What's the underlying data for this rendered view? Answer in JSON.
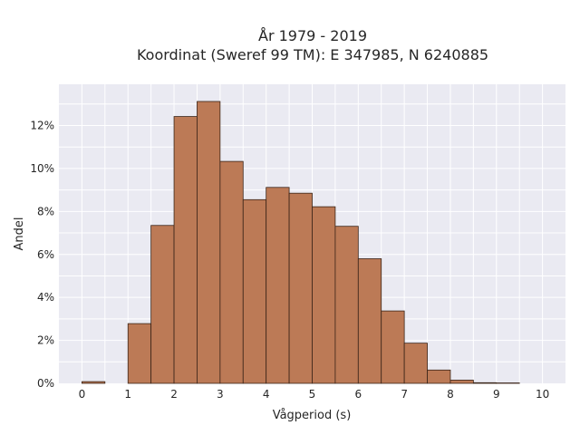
{
  "chart_data": {
    "type": "bar",
    "title_line1": "År 1979 - 2019",
    "title_line2": "Koordinat (Sweref 99 TM): E 347985, N 6240885",
    "xlabel": "Vågperiod (s)",
    "ylabel": "Andel",
    "bin_width": 0.5,
    "bins": [
      {
        "x0": 0.0,
        "value": 0.0008
      },
      {
        "x0": 0.5,
        "value": 0.0
      },
      {
        "x0": 1.0,
        "value": 0.0278
      },
      {
        "x0": 1.5,
        "value": 0.0735
      },
      {
        "x0": 2.0,
        "value": 0.1242
      },
      {
        "x0": 2.5,
        "value": 0.1312
      },
      {
        "x0": 3.0,
        "value": 0.1033
      },
      {
        "x0": 3.5,
        "value": 0.0855
      },
      {
        "x0": 4.0,
        "value": 0.0912
      },
      {
        "x0": 4.5,
        "value": 0.0885
      },
      {
        "x0": 5.0,
        "value": 0.0822
      },
      {
        "x0": 5.5,
        "value": 0.0731
      },
      {
        "x0": 6.0,
        "value": 0.058
      },
      {
        "x0": 6.5,
        "value": 0.0337
      },
      {
        "x0": 7.0,
        "value": 0.0187
      },
      {
        "x0": 7.5,
        "value": 0.0062
      },
      {
        "x0": 8.0,
        "value": 0.0015
      },
      {
        "x0": 8.5,
        "value": 0.0003
      },
      {
        "x0": 9.0,
        "value": 0.0002
      }
    ],
    "xticks": [
      "0",
      "1",
      "2",
      "3",
      "4",
      "5",
      "6",
      "7",
      "8",
      "9",
      "10"
    ],
    "yticks": [
      "0%",
      "2%",
      "4%",
      "6%",
      "8%",
      "10%",
      "12%"
    ],
    "xlim": [
      -0.5,
      10.5
    ],
    "ylim": [
      0,
      0.1392
    ],
    "grid": true,
    "bar_color": "#bc7a56",
    "bar_edge_color": "#3a2418",
    "plot_bg": "#eaeaf2"
  }
}
